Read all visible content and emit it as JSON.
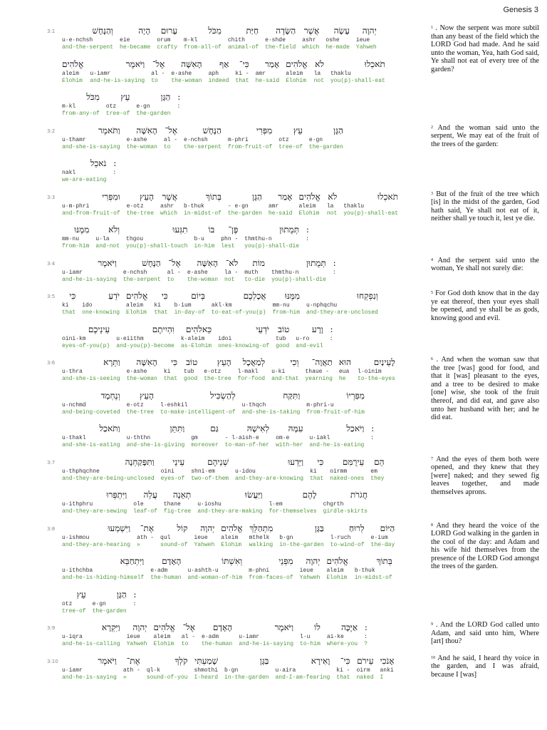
{
  "header": {
    "title": "Genesis 3"
  },
  "verses": [
    {
      "ref": "3:1",
      "note_num": "1",
      "kjv": ". Now the serpent was more subtil than any beast of the field which the LORD God had made. And he said unto the woman, Yea, hath God said, Ye shall not eat of every tree of the garden?",
      "rows": [
        [
          [
            "וְהַנָּחָשׁ",
            "u·e·nchsh",
            "and-the-serpent"
          ],
          [
            "הָיָה",
            "eie",
            "he-became"
          ],
          [
            "עָרוּם",
            "orum",
            "crafty"
          ],
          [
            "מִכֹּל",
            "m·kl",
            "from·all-of"
          ],
          [
            "חַיַּת",
            "chith",
            "animal-of"
          ],
          [
            "הַשָּׂדֶה",
            "e·shde",
            "the-field"
          ],
          [
            "אֲשֶׁר",
            "ashr",
            "which"
          ],
          [
            "עָשָׂה",
            "oshe",
            "he-made"
          ],
          [
            "יְהוָה",
            "ieue",
            "Yahweh"
          ]
        ],
        [
          [
            "אֱלֹהִים",
            "aleim",
            "Elohim"
          ],
          [
            "וַיֹּאמֶר",
            "u·iamr",
            "and-he-is-saying"
          ],
          [
            "אֶל־",
            "al -",
            "to"
          ],
          [
            "הָאִשָּׁה",
            "e·ashe",
            "the-woman"
          ],
          [
            "אַף",
            "aph",
            "indeed"
          ],
          [
            "כִּי־",
            "ki -",
            "that"
          ],
          [
            "אָמַר",
            "amr",
            "he-said"
          ],
          [
            "אֱלֹהִים",
            "aleim",
            "Elohim"
          ],
          [
            "לֹא",
            "la",
            "not"
          ],
          [
            "תֹאכְלוּ",
            "thaklu",
            "you(p)-shall-eat"
          ]
        ],
        [
          [
            "מִכֹּל",
            "m·kl",
            "from·any-of"
          ],
          [
            "עֵץ",
            "otz",
            "tree-of"
          ],
          [
            "הַגָּן",
            "e·gn",
            "the-garden"
          ],
          [
            ":",
            ":"
          ]
        ]
      ]
    },
    {
      "ref": "3:2",
      "note_num": "2",
      "kjv": "And the woman said unto the serpent, We may eat of the fruit of the trees of the garden:",
      "rows": [
        [
          [
            "וַתֹּאמֶר",
            "u·thamr",
            "and-she-is-saying"
          ],
          [
            "הָאִשָּׁה",
            "e·ashe",
            "the-woman"
          ],
          [
            "אֶל־",
            "al -",
            "to"
          ],
          [
            "הַנָּחָשׁ",
            "e·nchsh",
            "the-serpent"
          ],
          [
            "מִפְּרִי",
            "m·phri",
            "from-fruit-of"
          ],
          [
            "עֵץ",
            "otz",
            "tree-of"
          ],
          [
            "הַגָּן",
            "e·gn",
            "the-garden"
          ]
        ],
        [
          [
            "נֹאכֵל",
            "nakl",
            "we-are-eating"
          ],
          [
            ":",
            ":"
          ]
        ]
      ]
    },
    {
      "ref": "3:3",
      "note_num": "3",
      "kjv": "But of the fruit of the tree which [is] in the midst of the garden, God hath said, Ye shall not eat of it, neither shall ye touch it, lest ye die.",
      "rows": [
        [
          [
            "וּמִפְּרִי",
            "u·m·phri",
            "and-from-fruit-of"
          ],
          [
            "הָעֵץ",
            "e·otz",
            "the-tree"
          ],
          [
            "אֲשֶׁר",
            "ashr",
            "which"
          ],
          [
            "בְּתוֹךְ",
            "b·thuk",
            "in-midst-of"
          ],
          [
            "הַגָּן",
            "- e·gn",
            "the-garden"
          ],
          [
            "אָמַר",
            "amr",
            "he-said"
          ],
          [
            "אֱלֹהִים",
            "aleim",
            "Elohim"
          ],
          [
            "לֹא",
            "la",
            "not"
          ],
          [
            "תֹאכְלוּ",
            "thaklu",
            "you(p)-shall-eat"
          ]
        ],
        [
          [
            "מִמֶּנּוּ",
            "mm·nu",
            "from-him"
          ],
          [
            "וְלֹא",
            "u·la",
            "and-not"
          ],
          [
            "תִגְּעוּ",
            "thgou",
            "you(p)-shall-touch"
          ],
          [
            "בּוֹ",
            "b·u",
            "in-him"
          ],
          [
            "פֶּן־",
            "phn -",
            "lest"
          ],
          [
            "תְּמֻתוּן",
            "thmthu·n",
            "you(p)-shall-die"
          ],
          [
            ":",
            ":"
          ]
        ]
      ]
    },
    {
      "ref": "3:4",
      "note_num": "4",
      "kjv": "And the serpent said unto the woman, Ye shall not surely die:",
      "rows": [
        [
          [
            "וַיֹּאמֶר",
            "u·iamr",
            "and-he-is-saying"
          ],
          [
            "הַנָּחָשׁ",
            "e·nchsh",
            "the-serpent"
          ],
          [
            "אֶל־",
            "al -",
            "to"
          ],
          [
            "הָאִשָּׁה",
            "e·ashe",
            "the-woman"
          ],
          [
            "לֹא־",
            "la -",
            "not"
          ],
          [
            "מוֹת",
            "muth",
            "to-die"
          ],
          [
            "תְּמֻתוּן",
            "thmthu·n",
            "you(p)-shall-die"
          ],
          [
            ":",
            ":"
          ]
        ]
      ]
    },
    {
      "ref": "3:5",
      "note_num": "5",
      "kjv": "For God doth know that in the day ye eat thereof, then your eyes shall be opened, and ye shall be as gods, knowing good and evil.",
      "rows": [
        [
          [
            "כִּי",
            "ki",
            "that"
          ],
          [
            "יֹדֵעַ",
            "ido",
            "one-knowing"
          ],
          [
            "אֱלֹהִים",
            "aleim",
            "Elohim"
          ],
          [
            "כִּי",
            "ki",
            "that"
          ],
          [
            "בְּיוֹם",
            "b·ium",
            "in-day-of"
          ],
          [
            "אֲכָלְכֶם",
            "akl·km",
            "to-eat-of-you(p)"
          ],
          [
            "מִמֶּנּוּ",
            "mm·nu",
            "from-him"
          ],
          [
            "וְנִפְקְחוּ",
            "u·nphqchu",
            "and-they-are-unclosed"
          ]
        ],
        [
          [
            "עֵינֵיכֶם",
            "oini·km",
            "eyes-of-you(p)"
          ],
          [
            "וִהְיִיתֶם",
            "u·eiithm",
            "and-you(p)-become"
          ],
          [
            "כֵּאלֹהִים",
            "k·aleim",
            "as-Elohim"
          ],
          [
            "יֹדְעֵי",
            "idoi",
            "ones-knowing-of"
          ],
          [
            "טוֹב",
            "tub",
            "good"
          ],
          [
            "וָרָע",
            "u·ro",
            "and-evil"
          ],
          [
            ":",
            ":"
          ]
        ]
      ]
    },
    {
      "ref": "3:6",
      "note_num": "6",
      "kjv": ". And when the woman saw that the tree [was] good for food, and that it [was] pleasant to the eyes, and a tree to be desired to make [one] wise, she took of the fruit thereof, and did eat, and gave also unto her husband with her; and he did eat.",
      "rows": [
        [
          [
            "וַתֵּרֶא",
            "u·thra",
            "and-she-is-seeing"
          ],
          [
            "הָאִשָּׁה",
            "e·ashe",
            "the-woman"
          ],
          [
            "כִּי",
            "ki",
            "that"
          ],
          [
            "טוֹב",
            "tub",
            "good"
          ],
          [
            "הָעֵץ",
            "e·otz",
            "the-tree"
          ],
          [
            "לְמַאֲכָל",
            "l·makl",
            "for-food"
          ],
          [
            "וְכִי",
            "u·ki",
            "and-that"
          ],
          [
            "תַאֲוָה־",
            "thaue -",
            "yearning"
          ],
          [
            "הוּא",
            "eua",
            "he"
          ],
          [
            "לָעֵינַיִם",
            "l·oinim",
            "to-the-eyes"
          ]
        ],
        [
          [
            "וְנֶחְמָד",
            "u·nchmd",
            "and-being-coveted"
          ],
          [
            "הָעֵץ",
            "e·otz",
            "the-tree"
          ],
          [
            "לְהַשְׂכִּיל",
            "l·eshkil",
            "to-make-intelligent-of"
          ],
          [
            "וַתִּקַּח",
            "u·thqch",
            "and-she-is-taking"
          ],
          [
            "מִפִּרְיוֹ",
            "m·phri·u",
            "from-fruit-of-him"
          ]
        ],
        [
          [
            "וַתֹּאכַל",
            "u·thakl",
            "and-she-is-eating"
          ],
          [
            "וַתִּתֵּן",
            "u·ththn",
            "and-she-is-giving"
          ],
          [
            "גַּם",
            "gm",
            "moreover"
          ],
          [
            "לְאִישָׁהּ",
            "- l·aish·e",
            "to-man-of-her"
          ],
          [
            "עִמָּהּ",
            "om·e",
            "with-her"
          ],
          [
            "וַיֹּאכַל",
            "u·iakl",
            "and-he-is-eating"
          ],
          [
            ":",
            ":"
          ]
        ]
      ]
    },
    {
      "ref": "3:7",
      "note_num": "7",
      "kjv": "And the eyes of them both were opened, and they knew that they [were] naked; and they sewed fig leaves together, and made themselves aprons.",
      "rows": [
        [
          [
            "וַתִּפָּקַחְנָה",
            "u·thphqchne",
            "and-they-are-being-unclosed"
          ],
          [
            "עֵינֵי",
            "oini",
            "eyes-of"
          ],
          [
            "שְׁנֵיהֶם",
            "shni·em",
            "two-of-them"
          ],
          [
            "וַיֵּדְעוּ",
            "u·idou",
            "and-they-are-knowing"
          ],
          [
            "כִּי",
            "ki",
            "that"
          ],
          [
            "עֵירֻמִּם",
            "oirmm",
            "naked-ones"
          ],
          [
            "הֵם",
            "em",
            "they"
          ]
        ],
        [
          [
            "וַיִּתְפְּרוּ",
            "u·ithphru",
            "and-they-are-sewing"
          ],
          [
            "עֲלֵה",
            "ole",
            "leaf-of"
          ],
          [
            "תְאֵנָה",
            "thane",
            "fig-tree"
          ],
          [
            "וַיַּעֲשׂוּ",
            "u·ioshu",
            "and-they-are-making"
          ],
          [
            "לָהֶם",
            "l·em",
            "for-themselves"
          ],
          [
            "חֲגֹרֹת",
            "chgrth",
            "girdle-skirts"
          ]
        ]
      ]
    },
    {
      "ref": "3:8",
      "note_num": "8",
      "kjv": "And they heard the voice of the LORD God walking in the garden in the cool of the day: and Adam and his wife hid themselves from the presence of the LORD God amongst the trees of the garden.",
      "rows": [
        [
          [
            "וַיִּשְׁמְעוּ",
            "u·ishmou",
            "and-they-are-hearing"
          ],
          [
            "אֶת־",
            "ath -",
            "»"
          ],
          [
            "קוֹל",
            "qul",
            "sound-of"
          ],
          [
            "יְהוָה",
            "ieue",
            "Yahweh"
          ],
          [
            "אֱלֹהִים",
            "aleim",
            "Elohim"
          ],
          [
            "מִתְהַלֵּךְ",
            "mthelk",
            "walking"
          ],
          [
            "בַּגָּן",
            "b·gn",
            "in-the-garden"
          ],
          [
            "לְרוּחַ",
            "l·ruch",
            "to-wind-of"
          ],
          [
            "הַיּוֹם",
            "e·ium",
            "the-day"
          ]
        ],
        [
          [
            "וַיִּתְחַבֵּא",
            "u·ithchba",
            "and-he-is-hiding-himself"
          ],
          [
            "הָאָדָם",
            "e·adm",
            "the-human"
          ],
          [
            "וְאִשְׁתּוֹ",
            "u·ashth·u",
            "and-woman-of-him"
          ],
          [
            "מִפְּנֵי",
            "m·phni",
            "from-faces-of"
          ],
          [
            "יְהוָה",
            "ieue",
            "Yahweh"
          ],
          [
            "אֱלֹהִים",
            "aleim",
            "Elohim"
          ],
          [
            "בְּתוֹךְ",
            "b·thuk",
            "in-midst-of"
          ]
        ],
        [
          [
            "עֵץ",
            "otz",
            "tree-of"
          ],
          [
            "הַגָּן",
            "e·gn",
            "the-garden"
          ],
          [
            ":",
            ":"
          ]
        ]
      ]
    },
    {
      "ref": "3:9",
      "note_num": "9",
      "kjv": ". And the LORD God called unto Adam, and said unto him, Where [art] thou?",
      "rows": [
        [
          [
            "וַיִּקְרָא",
            "u·iqra",
            "and-he-is-calling"
          ],
          [
            "יְהוָה",
            "ieue",
            "Yahweh"
          ],
          [
            "אֱלֹהִים",
            "aleim",
            "Elohim"
          ],
          [
            "אֶל־",
            "al -",
            "to"
          ],
          [
            "הָאָדָם",
            "e·adm",
            "the-human"
          ],
          [
            "וַיֹּאמֶר",
            "u·iamr",
            "and-he-is-saying"
          ],
          [
            "לוֹ",
            "l·u",
            "to-him"
          ],
          [
            "אַיֶּכָּה",
            "ai·ke",
            "where-you"
          ],
          [
            ":",
            ":",
            "?"
          ]
        ]
      ]
    },
    {
      "ref": "3:10",
      "note_num": "10",
      "kjv": "And he said, I heard thy voice in the garden, and I was afraid, because I [was]",
      "rows": [
        [
          [
            "וַיֹּאמֶר",
            "u·iamr",
            "and-he-is-saying"
          ],
          [
            "אֶת־",
            "ath -",
            "»"
          ],
          [
            "קֹלְךָ",
            "ql·k",
            "sound-of-you"
          ],
          [
            "שָׁמַעְתִּי",
            "shmothi",
            "I-heard"
          ],
          [
            "בַּגָּן",
            "b·gn",
            "in-the-garden"
          ],
          [
            "וָאִירָא",
            "u·aira",
            "and-I-am-fearing"
          ],
          [
            "כִּי־",
            "ki -",
            "that"
          ],
          [
            "עֵירֹם",
            "oirm",
            "naked"
          ],
          [
            "אָנֹכִי",
            "anki",
            "I"
          ]
        ]
      ]
    }
  ]
}
